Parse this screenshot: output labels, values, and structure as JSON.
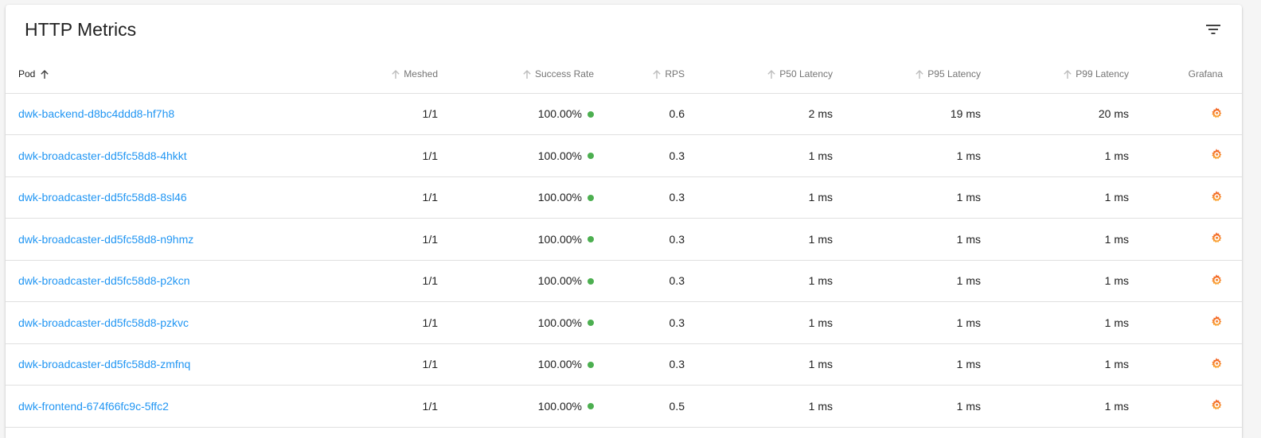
{
  "card": {
    "title": "HTTP Metrics"
  },
  "colors": {
    "link": "#2196f3",
    "success": "#4caf50",
    "grafana": "#f46800"
  },
  "icons": {
    "filter": "filter-list-icon",
    "sort": "arrow-upward-icon",
    "grafana": "grafana-icon"
  },
  "table": {
    "headers": {
      "pod": "Pod",
      "meshed": "Meshed",
      "success_rate": "Success Rate",
      "rps": "RPS",
      "p50": "P50 Latency",
      "p95": "P95 Latency",
      "p99": "P99 Latency",
      "grafana": "Grafana"
    },
    "rows": [
      {
        "pod": "dwk-backend-d8bc4ddd8-hf7h8",
        "meshed": "1/1",
        "success_rate": "100.00%",
        "rps": "0.6",
        "p50": "2 ms",
        "p95": "19 ms",
        "p99": "20 ms"
      },
      {
        "pod": "dwk-broadcaster-dd5fc58d8-4hkkt",
        "meshed": "1/1",
        "success_rate": "100.00%",
        "rps": "0.3",
        "p50": "1 ms",
        "p95": "1 ms",
        "p99": "1 ms"
      },
      {
        "pod": "dwk-broadcaster-dd5fc58d8-8sl46",
        "meshed": "1/1",
        "success_rate": "100.00%",
        "rps": "0.3",
        "p50": "1 ms",
        "p95": "1 ms",
        "p99": "1 ms"
      },
      {
        "pod": "dwk-broadcaster-dd5fc58d8-n9hmz",
        "meshed": "1/1",
        "success_rate": "100.00%",
        "rps": "0.3",
        "p50": "1 ms",
        "p95": "1 ms",
        "p99": "1 ms"
      },
      {
        "pod": "dwk-broadcaster-dd5fc58d8-p2kcn",
        "meshed": "1/1",
        "success_rate": "100.00%",
        "rps": "0.3",
        "p50": "1 ms",
        "p95": "1 ms",
        "p99": "1 ms"
      },
      {
        "pod": "dwk-broadcaster-dd5fc58d8-pzkvc",
        "meshed": "1/1",
        "success_rate": "100.00%",
        "rps": "0.3",
        "p50": "1 ms",
        "p95": "1 ms",
        "p99": "1 ms"
      },
      {
        "pod": "dwk-broadcaster-dd5fc58d8-zmfnq",
        "meshed": "1/1",
        "success_rate": "100.00%",
        "rps": "0.3",
        "p50": "1 ms",
        "p95": "1 ms",
        "p99": "1 ms"
      },
      {
        "pod": "dwk-frontend-674f66fc9c-5ffc2",
        "meshed": "1/1",
        "success_rate": "100.00%",
        "rps": "0.5",
        "p50": "1 ms",
        "p95": "1 ms",
        "p99": "1 ms"
      }
    ]
  }
}
